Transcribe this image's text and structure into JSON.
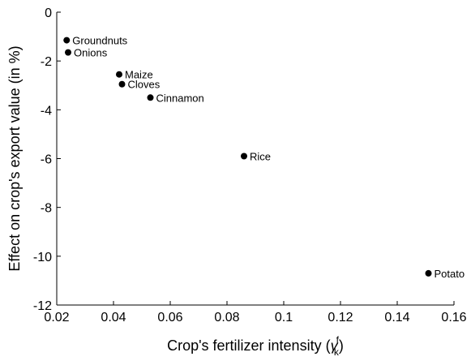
{
  "chart_data": {
    "type": "scatter",
    "xlabel": "Crop's fertilizer intensity (",
    "xlabel_symbol": "γ",
    "xlabel_sup": "f",
    "xlabel_sub": "k",
    "xlabel_close": ")",
    "ylabel": "Effect on crop's export value (in %)",
    "xlim": [
      0.02,
      0.16
    ],
    "ylim": [
      -12,
      0
    ],
    "xticks": [
      0.02,
      0.04,
      0.06,
      0.08,
      0.1,
      0.12,
      0.14,
      0.16
    ],
    "xtick_labels": [
      "0.02",
      "0.04",
      "0.06",
      "0.08",
      "0.1",
      "0.12",
      "0.14",
      "0.16"
    ],
    "yticks": [
      0,
      -2,
      -4,
      -6,
      -8,
      -10,
      -12
    ],
    "ytick_labels": [
      "0",
      "-2",
      "-4",
      "-6",
      "-8",
      "-10",
      "-12"
    ],
    "grid": false,
    "marker_color": "#000000",
    "points": [
      {
        "label": "Groundnuts",
        "x": 0.0235,
        "y": -1.15
      },
      {
        "label": "Onions",
        "x": 0.024,
        "y": -1.65
      },
      {
        "label": "Maize",
        "x": 0.042,
        "y": -2.55
      },
      {
        "label": "Cloves",
        "x": 0.043,
        "y": -2.95
      },
      {
        "label": "Cinnamon",
        "x": 0.053,
        "y": -3.5
      },
      {
        "label": "Rice",
        "x": 0.086,
        "y": -5.9
      },
      {
        "label": "Potato",
        "x": 0.151,
        "y": -10.7
      }
    ]
  }
}
